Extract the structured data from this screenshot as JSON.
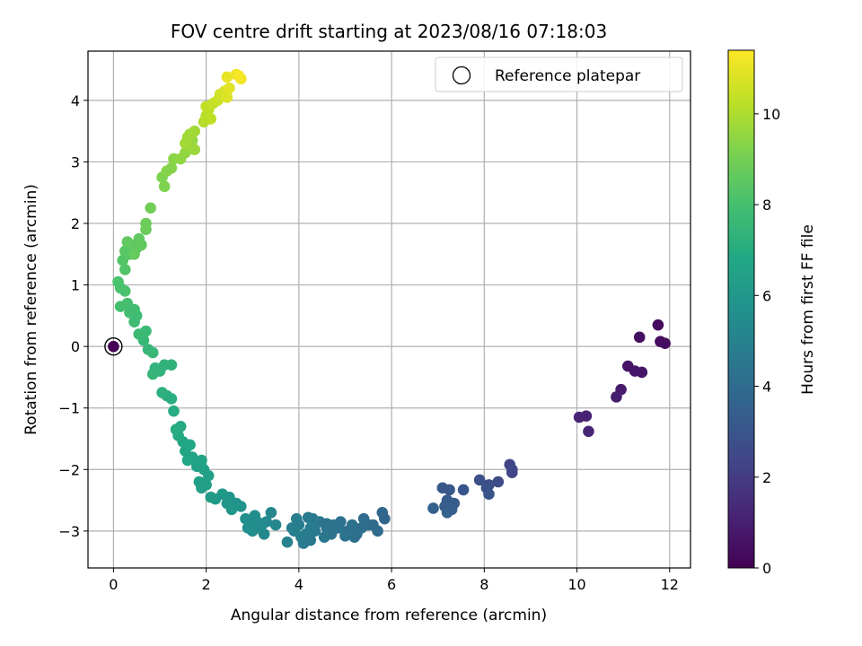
{
  "chart_data": {
    "type": "scatter",
    "title": "FOV centre drift starting at 2023/08/16 07:18:03",
    "xlabel": "Angular distance from reference (arcmin)",
    "ylabel": "Rotation from reference (arcmin)",
    "xlim": [
      -0.55,
      12.45
    ],
    "ylim": [
      -3.6,
      4.8
    ],
    "xticks": [
      0,
      2,
      4,
      6,
      8,
      10,
      12
    ],
    "yticks": [
      -3,
      -2,
      -1,
      0,
      1,
      2,
      3,
      4
    ],
    "xtick_labels": [
      "0",
      "2",
      "4",
      "6",
      "8",
      "10",
      "12"
    ],
    "ytick_labels": [
      "−3",
      "−2",
      "−1",
      "0",
      "1",
      "2",
      "3",
      "4"
    ],
    "grid": true,
    "legend": {
      "label": "Reference platepar",
      "placement": "top-right",
      "marker": "open-circle"
    },
    "reference_point": {
      "x": 0,
      "y": 0
    },
    "colorbar": {
      "label": "Hours from first FF file",
      "colormap": "viridis",
      "range": [
        0,
        11.4
      ],
      "ticks": [
        0,
        2,
        4,
        6,
        8,
        10
      ],
      "tick_labels": [
        "0",
        "2",
        "4",
        "6",
        "8",
        "10"
      ]
    },
    "points": [
      {
        "x": 0.0,
        "y": 0.0,
        "h": 0.0
      },
      {
        "x": 11.75,
        "y": 0.35,
        "h": 0.3
      },
      {
        "x": 11.9,
        "y": 0.05,
        "h": 0.4
      },
      {
        "x": 11.8,
        "y": 0.08,
        "h": 0.4
      },
      {
        "x": 11.35,
        "y": 0.15,
        "h": 0.5
      },
      {
        "x": 11.1,
        "y": -0.32,
        "h": 0.6
      },
      {
        "x": 11.25,
        "y": -0.4,
        "h": 0.7
      },
      {
        "x": 11.4,
        "y": -0.42,
        "h": 0.7
      },
      {
        "x": 10.95,
        "y": -0.7,
        "h": 0.8
      },
      {
        "x": 10.85,
        "y": -0.82,
        "h": 0.9
      },
      {
        "x": 10.05,
        "y": -1.15,
        "h": 1.1
      },
      {
        "x": 10.2,
        "y": -1.13,
        "h": 1.1
      },
      {
        "x": 10.25,
        "y": -1.38,
        "h": 1.2
      },
      {
        "x": 8.55,
        "y": -1.92,
        "h": 2.3
      },
      {
        "x": 8.6,
        "y": -2.0,
        "h": 2.4
      },
      {
        "x": 8.6,
        "y": -2.05,
        "h": 2.4
      },
      {
        "x": 8.3,
        "y": -2.2,
        "h": 2.6
      },
      {
        "x": 8.1,
        "y": -2.25,
        "h": 2.7
      },
      {
        "x": 7.9,
        "y": -2.17,
        "h": 2.8
      },
      {
        "x": 8.05,
        "y": -2.3,
        "h": 2.8
      },
      {
        "x": 8.1,
        "y": -2.4,
        "h": 2.9
      },
      {
        "x": 7.55,
        "y": -2.33,
        "h": 3.0
      },
      {
        "x": 7.25,
        "y": -2.33,
        "h": 3.1
      },
      {
        "x": 7.1,
        "y": -2.3,
        "h": 3.1
      },
      {
        "x": 7.2,
        "y": -2.5,
        "h": 3.2
      },
      {
        "x": 7.35,
        "y": -2.55,
        "h": 3.3
      },
      {
        "x": 7.15,
        "y": -2.6,
        "h": 3.3
      },
      {
        "x": 7.3,
        "y": -2.65,
        "h": 3.4
      },
      {
        "x": 7.2,
        "y": -2.7,
        "h": 3.4
      },
      {
        "x": 6.9,
        "y": -2.63,
        "h": 3.5
      },
      {
        "x": 5.8,
        "y": -2.7,
        "h": 3.8
      },
      {
        "x": 5.85,
        "y": -2.8,
        "h": 3.8
      },
      {
        "x": 5.6,
        "y": -2.9,
        "h": 3.9
      },
      {
        "x": 5.7,
        "y": -3.0,
        "h": 3.9
      },
      {
        "x": 5.4,
        "y": -2.8,
        "h": 4.0
      },
      {
        "x": 5.5,
        "y": -2.9,
        "h": 4.0
      },
      {
        "x": 5.35,
        "y": -2.95,
        "h": 4.1
      },
      {
        "x": 5.25,
        "y": -3.05,
        "h": 4.1
      },
      {
        "x": 5.15,
        "y": -2.9,
        "h": 4.2
      },
      {
        "x": 5.05,
        "y": -3.0,
        "h": 4.2
      },
      {
        "x": 5.2,
        "y": -3.1,
        "h": 4.2
      },
      {
        "x": 5.0,
        "y": -3.08,
        "h": 4.3
      },
      {
        "x": 4.9,
        "y": -2.85,
        "h": 4.3
      },
      {
        "x": 4.85,
        "y": -2.95,
        "h": 4.3
      },
      {
        "x": 4.75,
        "y": -2.9,
        "h": 4.4
      },
      {
        "x": 4.7,
        "y": -3.05,
        "h": 4.4
      },
      {
        "x": 4.6,
        "y": -2.95,
        "h": 4.4
      },
      {
        "x": 4.55,
        "y": -3.1,
        "h": 4.5
      },
      {
        "x": 4.45,
        "y": -2.85,
        "h": 4.5
      },
      {
        "x": 4.35,
        "y": -3.0,
        "h": 4.6
      },
      {
        "x": 4.3,
        "y": -2.8,
        "h": 4.6
      },
      {
        "x": 4.2,
        "y": -2.78,
        "h": 4.6
      },
      {
        "x": 4.25,
        "y": -2.95,
        "h": 4.7
      },
      {
        "x": 4.15,
        "y": -3.05,
        "h": 4.7
      },
      {
        "x": 4.1,
        "y": -3.2,
        "h": 4.7
      },
      {
        "x": 4.05,
        "y": -3.1,
        "h": 4.8
      },
      {
        "x": 4.0,
        "y": -2.9,
        "h": 4.8
      },
      {
        "x": 3.95,
        "y": -2.8,
        "h": 4.8
      },
      {
        "x": 3.9,
        "y": -3.0,
        "h": 4.9
      },
      {
        "x": 3.85,
        "y": -2.95,
        "h": 4.9
      },
      {
        "x": 3.75,
        "y": -3.18,
        "h": 5.0
      },
      {
        "x": 4.6,
        "y": -2.88,
        "h": 4.4
      },
      {
        "x": 4.25,
        "y": -3.15,
        "h": 4.6
      },
      {
        "x": 3.4,
        "y": -2.7,
        "h": 5.2
      },
      {
        "x": 3.5,
        "y": -2.9,
        "h": 5.2
      },
      {
        "x": 3.3,
        "y": -2.85,
        "h": 5.3
      },
      {
        "x": 3.25,
        "y": -3.05,
        "h": 5.3
      },
      {
        "x": 3.15,
        "y": -2.95,
        "h": 5.4
      },
      {
        "x": 3.1,
        "y": -2.85,
        "h": 5.4
      },
      {
        "x": 3.05,
        "y": -2.75,
        "h": 5.5
      },
      {
        "x": 3.0,
        "y": -3.0,
        "h": 5.5
      },
      {
        "x": 2.95,
        "y": -2.9,
        "h": 5.5
      },
      {
        "x": 2.9,
        "y": -2.95,
        "h": 5.6
      },
      {
        "x": 2.85,
        "y": -2.8,
        "h": 5.6
      },
      {
        "x": 3.2,
        "y": -2.9,
        "h": 5.4
      },
      {
        "x": 2.75,
        "y": -2.6,
        "h": 5.8
      },
      {
        "x": 2.65,
        "y": -2.55,
        "h": 5.8
      },
      {
        "x": 2.5,
        "y": -2.45,
        "h": 5.9
      },
      {
        "x": 2.55,
        "y": -2.65,
        "h": 6.0
      },
      {
        "x": 2.45,
        "y": -2.55,
        "h": 6.0
      },
      {
        "x": 2.35,
        "y": -2.4,
        "h": 6.1
      },
      {
        "x": 2.2,
        "y": -2.48,
        "h": 6.1
      },
      {
        "x": 2.1,
        "y": -2.45,
        "h": 6.2
      },
      {
        "x": 2.0,
        "y": -2.25,
        "h": 6.3
      },
      {
        "x": 1.9,
        "y": -2.3,
        "h": 6.3
      },
      {
        "x": 1.85,
        "y": -2.2,
        "h": 6.4
      },
      {
        "x": 2.05,
        "y": -2.1,
        "h": 6.4
      },
      {
        "x": 1.95,
        "y": -2.0,
        "h": 6.5
      },
      {
        "x": 1.8,
        "y": -1.95,
        "h": 6.5
      },
      {
        "x": 1.9,
        "y": -1.85,
        "h": 6.6
      },
      {
        "x": 1.7,
        "y": -1.8,
        "h": 6.6
      },
      {
        "x": 1.6,
        "y": -1.85,
        "h": 6.7
      },
      {
        "x": 1.55,
        "y": -1.7,
        "h": 6.7
      },
      {
        "x": 1.65,
        "y": -1.6,
        "h": 6.8
      },
      {
        "x": 1.5,
        "y": -1.55,
        "h": 6.8
      },
      {
        "x": 1.4,
        "y": -1.45,
        "h": 6.9
      },
      {
        "x": 1.45,
        "y": -1.3,
        "h": 6.9
      },
      {
        "x": 1.35,
        "y": -1.35,
        "h": 7.0
      },
      {
        "x": 1.3,
        "y": -1.05,
        "h": 7.0
      },
      {
        "x": 1.25,
        "y": -0.85,
        "h": 7.1
      },
      {
        "x": 1.15,
        "y": -0.8,
        "h": 7.1
      },
      {
        "x": 1.05,
        "y": -0.75,
        "h": 7.2
      },
      {
        "x": 1.25,
        "y": -0.3,
        "h": 7.3
      },
      {
        "x": 1.1,
        "y": -0.3,
        "h": 7.3
      },
      {
        "x": 1.0,
        "y": -0.4,
        "h": 7.4
      },
      {
        "x": 0.9,
        "y": -0.35,
        "h": 7.4
      },
      {
        "x": 0.85,
        "y": -0.45,
        "h": 7.5
      },
      {
        "x": 0.75,
        "y": -0.05,
        "h": 7.5
      },
      {
        "x": 0.85,
        "y": -0.1,
        "h": 7.6
      },
      {
        "x": 0.65,
        "y": 0.1,
        "h": 7.6
      },
      {
        "x": 0.55,
        "y": 0.2,
        "h": 7.7
      },
      {
        "x": 0.7,
        "y": 0.25,
        "h": 7.7
      },
      {
        "x": 0.45,
        "y": 0.4,
        "h": 7.8
      },
      {
        "x": 0.5,
        "y": 0.5,
        "h": 7.8
      },
      {
        "x": 0.35,
        "y": 0.55,
        "h": 7.9
      },
      {
        "x": 0.45,
        "y": 0.6,
        "h": 7.9
      },
      {
        "x": 0.3,
        "y": 0.7,
        "h": 8.0
      },
      {
        "x": 0.15,
        "y": 0.65,
        "h": 8.0
      },
      {
        "x": 0.25,
        "y": 0.9,
        "h": 8.1
      },
      {
        "x": 0.1,
        "y": 1.05,
        "h": 8.1
      },
      {
        "x": 0.15,
        "y": 0.95,
        "h": 8.1
      },
      {
        "x": 0.25,
        "y": 1.25,
        "h": 8.3
      },
      {
        "x": 0.2,
        "y": 1.4,
        "h": 8.3
      },
      {
        "x": 0.35,
        "y": 1.5,
        "h": 8.4
      },
      {
        "x": 0.25,
        "y": 1.55,
        "h": 8.4
      },
      {
        "x": 0.5,
        "y": 1.6,
        "h": 8.5
      },
      {
        "x": 0.4,
        "y": 1.65,
        "h": 8.5
      },
      {
        "x": 0.3,
        "y": 1.7,
        "h": 8.6
      },
      {
        "x": 0.55,
        "y": 1.75,
        "h": 8.6
      },
      {
        "x": 0.6,
        "y": 1.65,
        "h": 8.6
      },
      {
        "x": 0.45,
        "y": 1.5,
        "h": 8.7
      },
      {
        "x": 0.7,
        "y": 1.9,
        "h": 8.8
      },
      {
        "x": 0.7,
        "y": 2.0,
        "h": 8.8
      },
      {
        "x": 0.8,
        "y": 2.25,
        "h": 8.9
      },
      {
        "x": 1.1,
        "y": 2.6,
        "h": 9.2
      },
      {
        "x": 1.05,
        "y": 2.75,
        "h": 9.2
      },
      {
        "x": 1.15,
        "y": 2.85,
        "h": 9.3
      },
      {
        "x": 1.25,
        "y": 2.9,
        "h": 9.3
      },
      {
        "x": 1.3,
        "y": 3.05,
        "h": 9.4
      },
      {
        "x": 1.45,
        "y": 3.05,
        "h": 9.5
      },
      {
        "x": 1.55,
        "y": 3.15,
        "h": 9.5
      },
      {
        "x": 1.6,
        "y": 3.25,
        "h": 9.6
      },
      {
        "x": 1.7,
        "y": 3.35,
        "h": 9.6
      },
      {
        "x": 1.75,
        "y": 3.2,
        "h": 9.7
      },
      {
        "x": 1.65,
        "y": 3.45,
        "h": 9.7
      },
      {
        "x": 1.6,
        "y": 3.4,
        "h": 9.8
      },
      {
        "x": 1.75,
        "y": 3.5,
        "h": 9.8
      },
      {
        "x": 1.55,
        "y": 3.3,
        "h": 9.8
      },
      {
        "x": 1.95,
        "y": 3.65,
        "h": 10.1
      },
      {
        "x": 2.0,
        "y": 3.75,
        "h": 10.2
      },
      {
        "x": 2.05,
        "y": 3.85,
        "h": 10.2
      },
      {
        "x": 2.1,
        "y": 3.7,
        "h": 10.3
      },
      {
        "x": 2.0,
        "y": 3.9,
        "h": 10.3
      },
      {
        "x": 2.15,
        "y": 3.95,
        "h": 10.4
      },
      {
        "x": 2.25,
        "y": 4.0,
        "h": 10.5
      },
      {
        "x": 2.3,
        "y": 4.1,
        "h": 10.6
      },
      {
        "x": 2.4,
        "y": 4.15,
        "h": 10.7
      },
      {
        "x": 2.45,
        "y": 4.05,
        "h": 10.8
      },
      {
        "x": 2.5,
        "y": 4.2,
        "h": 10.9
      },
      {
        "x": 2.45,
        "y": 4.38,
        "h": 11.0
      },
      {
        "x": 2.65,
        "y": 4.42,
        "h": 11.1
      },
      {
        "x": 2.75,
        "y": 4.35,
        "h": 11.2
      },
      {
        "x": 2.7,
        "y": 4.4,
        "h": 11.3
      }
    ]
  }
}
